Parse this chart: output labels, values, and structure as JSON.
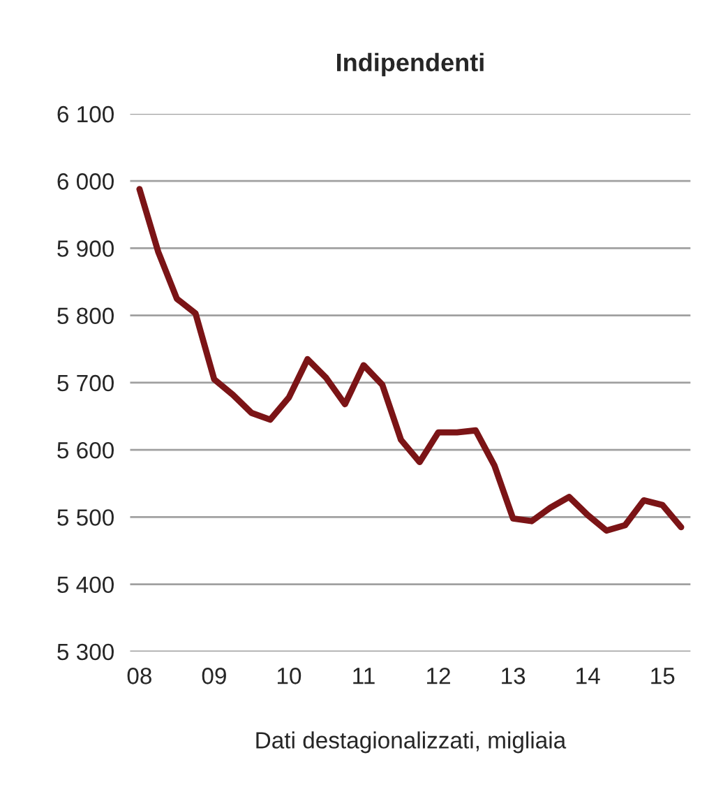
{
  "chart_data": {
    "type": "line",
    "title": "Indipendenti",
    "xlabel": "Dati destagionalizzati, migliaia",
    "categories": [
      "08",
      null,
      null,
      null,
      "09",
      null,
      null,
      null,
      "10",
      null,
      null,
      null,
      "11",
      null,
      null,
      null,
      "12",
      null,
      null,
      null,
      "13",
      null,
      null,
      null,
      "14",
      null,
      null,
      null,
      "15",
      null
    ],
    "series": [
      {
        "color": "#7b1416",
        "values": [
          5988,
          5895,
          5825,
          5803,
          5705,
          5682,
          5655,
          5645,
          5678,
          5735,
          5707,
          5668,
          5726,
          5697,
          5615,
          5582,
          5626,
          5626,
          5629,
          5577,
          5498,
          5494,
          5514,
          5530,
          5503,
          5480,
          5488,
          5525,
          5518,
          5485
        ]
      }
    ],
    "ylim": [
      5300,
      6100
    ],
    "yticks": [
      {
        "value": 5300,
        "label": "5 300"
      },
      {
        "value": 5400,
        "label": "5 400"
      },
      {
        "value": 5500,
        "label": "5 500"
      },
      {
        "value": 5600,
        "label": "5 600"
      },
      {
        "value": 5700,
        "label": "5 700"
      },
      {
        "value": 5800,
        "label": "5 800"
      },
      {
        "value": 5900,
        "label": "5 900"
      },
      {
        "value": 6000,
        "label": "6 000"
      },
      {
        "value": 6100,
        "label": "6 100"
      }
    ],
    "grid": "y",
    "marker": "none",
    "line_style": "solid"
  }
}
